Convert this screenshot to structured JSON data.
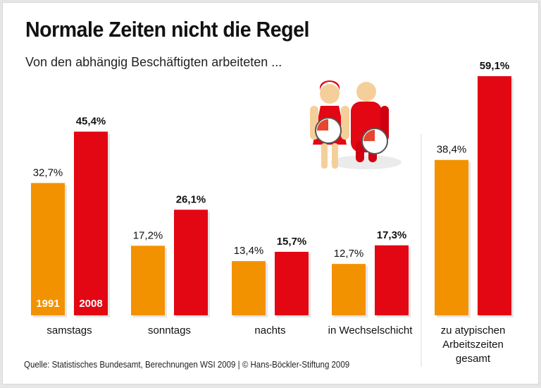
{
  "title": "Normale Zeiten nicht die Regel",
  "subtitle": "Von den abhängig Beschäftigten arbeiteten ...",
  "source": "Quelle: Statistisches Bundesamt, Berechnungen WSI 2009 | © Hans-Böckler-Stiftung 2009",
  "illustration": "two-figures-holding-clocks",
  "chart_data": {
    "type": "bar",
    "title": "Normale Zeiten nicht die Regel",
    "subtitle": "Von den abhängig Beschäftigten arbeiteten ...",
    "unit": "%",
    "categories": [
      [
        "samstags"
      ],
      [
        "sonntags"
      ],
      [
        "nachts"
      ],
      [
        "in Wechselschicht"
      ],
      [
        "zu atypischen",
        "Arbeitszeiten",
        "gesamt"
      ]
    ],
    "series": [
      {
        "name": "1991",
        "color": "#f39200",
        "values": [
          32.7,
          17.2,
          13.4,
          12.7,
          38.4
        ],
        "labels": [
          "32,7%",
          "17,2%",
          "13,4%",
          "12,7%",
          "38,4%"
        ]
      },
      {
        "name": "2008",
        "color": "#e30613",
        "values": [
          45.4,
          26.1,
          15.7,
          17.3,
          59.1
        ],
        "labels": [
          "45,4%",
          "26,1%",
          "15,7%",
          "17,3%",
          "59,1%"
        ]
      }
    ],
    "legend_placement": "inside first bars",
    "grid": false,
    "ylim": [
      0,
      60
    ]
  }
}
